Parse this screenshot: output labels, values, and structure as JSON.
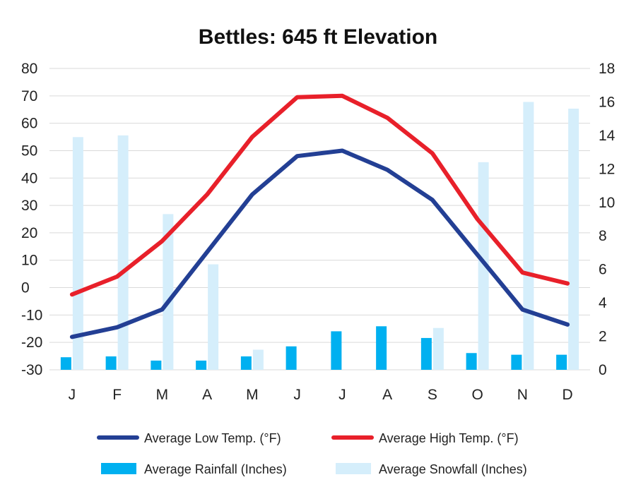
{
  "chart_data": {
    "type": "bar+line",
    "title": "Bettles: 645 ft Elevation",
    "categories": [
      "J",
      "F",
      "M",
      "A",
      "M",
      "J",
      "J",
      "A",
      "S",
      "O",
      "N",
      "D"
    ],
    "left_axis": {
      "ylim": [
        -30,
        80
      ],
      "ticks": [
        80,
        70,
        60,
        50,
        40,
        30,
        20,
        10,
        0,
        -10,
        -20,
        -30
      ]
    },
    "right_axis": {
      "ylim": [
        0,
        18
      ],
      "ticks": [
        18,
        16,
        14,
        12,
        10,
        8,
        6,
        4,
        2,
        0
      ]
    },
    "grid": true,
    "legend_position": "bottom",
    "series": [
      {
        "name": "Average Low Temp. (°F)",
        "kind": "line",
        "axis": "left",
        "color": "#233f94",
        "values": [
          -18,
          -14.5,
          -8,
          13,
          34,
          48,
          50,
          43,
          32,
          12,
          -8,
          -13.5
        ]
      },
      {
        "name": "Average High Temp. (°F)",
        "kind": "line",
        "axis": "left",
        "color": "#e8202a",
        "values": [
          -2.5,
          4,
          17,
          34,
          55,
          69.5,
          70,
          62,
          49,
          25,
          5.5,
          1.5
        ]
      },
      {
        "name": "Average Rainfall (Inches)",
        "kind": "bar",
        "axis": "right",
        "color": "#00b0f0",
        "values": [
          0.75,
          0.8,
          0.55,
          0.55,
          0.8,
          1.4,
          2.3,
          2.6,
          1.9,
          1.0,
          0.9,
          0.9
        ]
      },
      {
        "name": "Average Snowfall (Inches)",
        "kind": "bar",
        "axis": "right",
        "color": "#d5eefb",
        "values": [
          13.9,
          14.0,
          9.3,
          6.3,
          1.2,
          0,
          0,
          0,
          2.5,
          12.4,
          16.0,
          15.6
        ]
      }
    ]
  }
}
